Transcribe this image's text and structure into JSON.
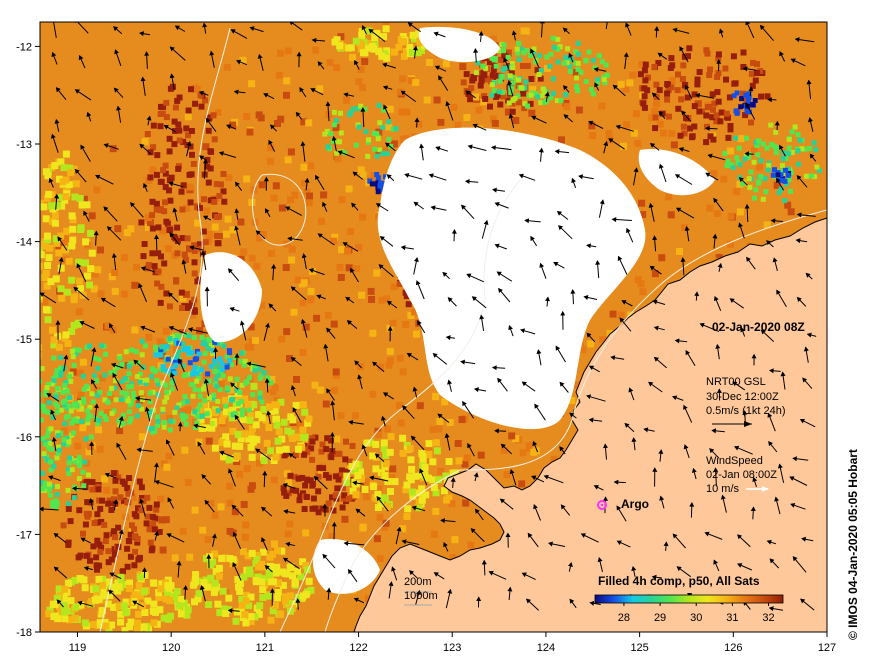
{
  "map": {
    "date_label": "02-Jan-2020 08Z",
    "credit": "© IMOS 04-Jan-2020 05:05 Hobart",
    "x_ticks": [
      "119",
      "120",
      "121",
      "122",
      "123",
      "124",
      "125",
      "126",
      "127"
    ],
    "y_ticks": [
      "-12",
      "-13",
      "-14",
      "-15",
      "-16",
      "-17",
      "-18"
    ],
    "lon_range": [
      118.6,
      127
    ],
    "lat_range": [
      -18,
      -11.75
    ],
    "currents": {
      "title": "NRT00 GSL",
      "time": "30-Dec 12:00Z",
      "scale": "0.5m/s (1kt 24h)"
    },
    "wind": {
      "title": "WindSpeed",
      "time": "02-Jan 08:00Z",
      "scale": "10 m/s"
    },
    "argo": {
      "label": "Argo",
      "color": "#ff33ff"
    },
    "bathymetry": {
      "contour1": "200m",
      "contour2": "1000m"
    },
    "colorbar": {
      "title": "Filled 4h comp, p50, All Sats",
      "ticks": [
        "28",
        "29",
        "30",
        "31",
        "32"
      ],
      "range": [
        27.2,
        32.4
      ],
      "colors": [
        "#0a0a80",
        "#1450e6",
        "#14c8e6",
        "#28d296",
        "#50e650",
        "#b4e61e",
        "#f0e61e",
        "#f5b414",
        "#e67814",
        "#c84b0f",
        "#961e0a"
      ]
    },
    "colors": {
      "land": "#ffc89b",
      "ocean_base": "#e68c1e",
      "coast": "#000000"
    }
  }
}
